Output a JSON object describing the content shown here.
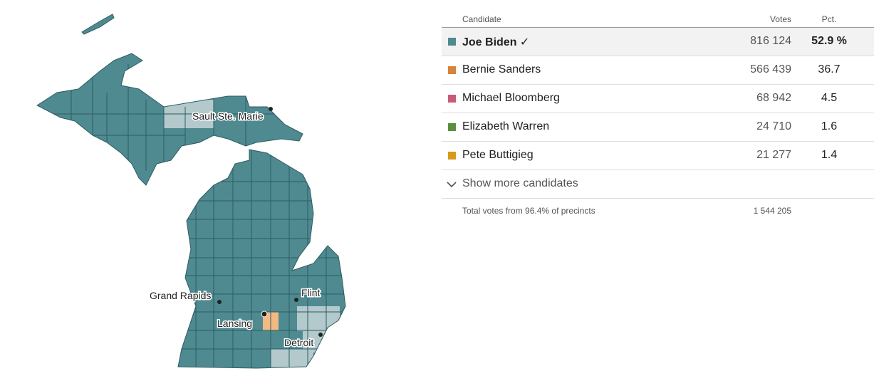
{
  "table": {
    "header": {
      "candidate": "Candidate",
      "votes": "Votes",
      "pct": "Pct."
    },
    "rows": [
      {
        "name": "Joe Biden ✓",
        "votes": "816 124",
        "pct": "52.9 %",
        "color": "#4f8a91"
      },
      {
        "name": "Bernie Sanders",
        "votes": "566 439",
        "pct": "36.7",
        "color": "#d9823b"
      },
      {
        "name": "Michael Bloomberg",
        "votes": "68 942",
        "pct": "4.5",
        "color": "#c95a7a"
      },
      {
        "name": "Elizabeth Warren",
        "votes": "24 710",
        "pct": "1.6",
        "color": "#5b8f3e"
      },
      {
        "name": "Pete Buttigieg",
        "votes": "21 277",
        "pct": "1.4",
        "color": "#d99a1b"
      }
    ],
    "show_more": "Show more candidates",
    "total_label": "Total votes from 96.4% of precincts",
    "total_votes": "1 544 205"
  },
  "map": {
    "cities": [
      "Sault Ste. Marie",
      "Grand Rapids",
      "Flint",
      "Lansing",
      "Detroit"
    ]
  }
}
